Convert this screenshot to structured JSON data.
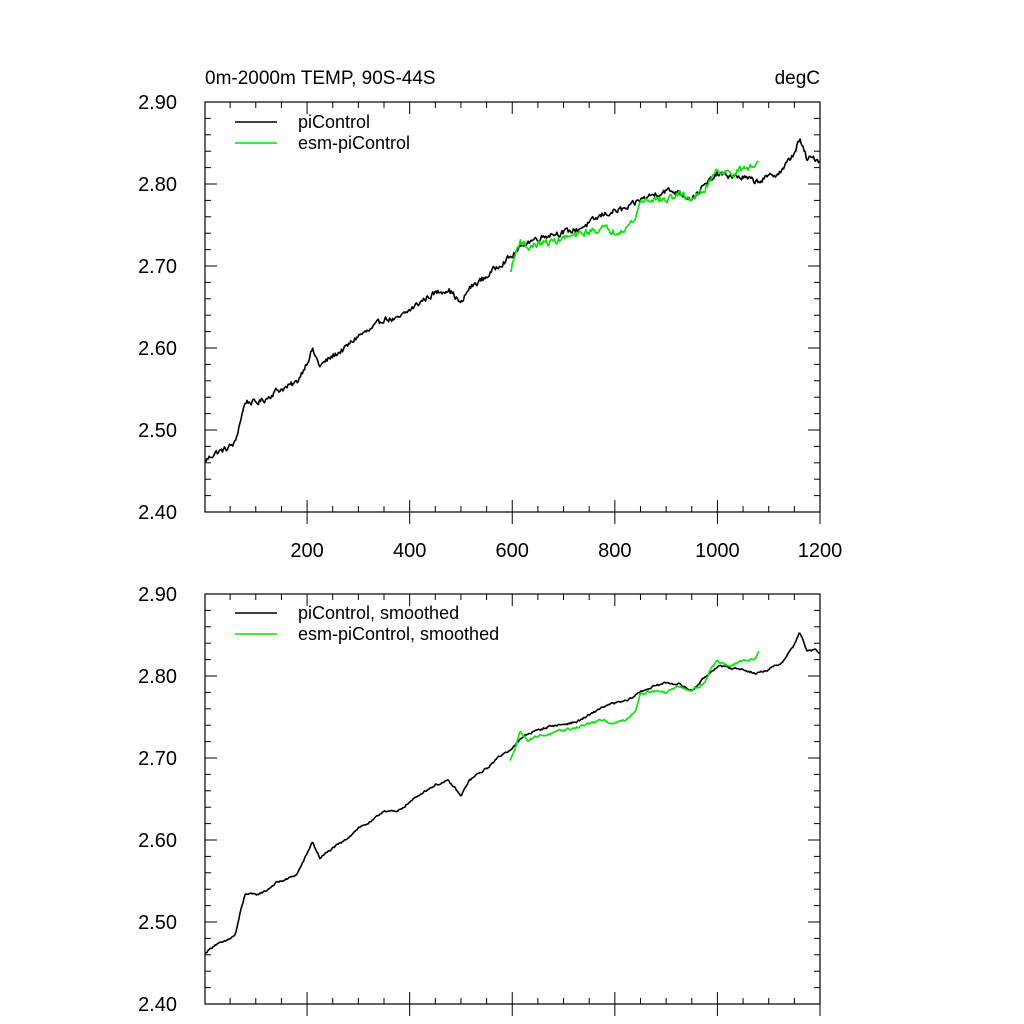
{
  "colors": {
    "picontrol": "#000000",
    "esm_picontrol": "#00e400"
  },
  "chart_data": [
    {
      "type": "line",
      "title_left": "0m-2000m TEMP, 90S-44S",
      "title_right": "degC",
      "xlabel": "",
      "ylabel": "",
      "xlim": [
        1,
        1200
      ],
      "ylim": [
        2.4,
        2.9
      ],
      "xticks": [
        200,
        400,
        600,
        800,
        1000,
        1200
      ],
      "xtick_labels": [
        "200",
        "400",
        "600",
        "800",
        "1000",
        "1200"
      ],
      "yticks": [
        2.4,
        2.5,
        2.6,
        2.7,
        2.8,
        2.9
      ],
      "ytick_labels": [
        "2.40",
        "2.50",
        "2.60",
        "2.70",
        "2.80",
        "2.90"
      ],
      "legend": [
        "piControl",
        "esm-piControl"
      ],
      "series": [
        {
          "name": "piControl",
          "color_key": "picontrol",
          "noise": 0.006,
          "points": [
            [
              1,
              2.462
            ],
            [
              20,
              2.472
            ],
            [
              40,
              2.476
            ],
            [
              60,
              2.484
            ],
            [
              70,
              2.512
            ],
            [
              80,
              2.535
            ],
            [
              100,
              2.533
            ],
            [
              120,
              2.538
            ],
            [
              140,
              2.548
            ],
            [
              160,
              2.552
            ],
            [
              180,
              2.558
            ],
            [
              200,
              2.583
            ],
            [
              210,
              2.598
            ],
            [
              225,
              2.578
            ],
            [
              250,
              2.59
            ],
            [
              275,
              2.6
            ],
            [
              300,
              2.615
            ],
            [
              325,
              2.622
            ],
            [
              350,
              2.636
            ],
            [
              375,
              2.634
            ],
            [
              400,
              2.646
            ],
            [
              425,
              2.658
            ],
            [
              450,
              2.667
            ],
            [
              475,
              2.672
            ],
            [
              490,
              2.662
            ],
            [
              500,
              2.653
            ],
            [
              515,
              2.672
            ],
            [
              530,
              2.679
            ],
            [
              550,
              2.687
            ],
            [
              575,
              2.702
            ],
            [
              600,
              2.712
            ],
            [
              625,
              2.728
            ],
            [
              650,
              2.734
            ],
            [
              675,
              2.739
            ],
            [
              700,
              2.741
            ],
            [
              725,
              2.744
            ],
            [
              750,
              2.752
            ],
            [
              775,
              2.762
            ],
            [
              800,
              2.767
            ],
            [
              825,
              2.77
            ],
            [
              850,
              2.781
            ],
            [
              875,
              2.787
            ],
            [
              900,
              2.792
            ],
            [
              925,
              2.79
            ],
            [
              950,
              2.782
            ],
            [
              975,
              2.798
            ],
            [
              1000,
              2.812
            ],
            [
              1025,
              2.81
            ],
            [
              1050,
              2.808
            ],
            [
              1075,
              2.803
            ],
            [
              1100,
              2.808
            ],
            [
              1125,
              2.816
            ],
            [
              1150,
              2.838
            ],
            [
              1160,
              2.854
            ],
            [
              1175,
              2.83
            ],
            [
              1190,
              2.832
            ],
            [
              1200,
              2.828
            ]
          ]
        },
        {
          "name": "esm-piControl",
          "color_key": "esm_picontrol",
          "noise": 0.007,
          "points": [
            [
              596,
              2.692
            ],
            [
              605,
              2.712
            ],
            [
              615,
              2.732
            ],
            [
              630,
              2.722
            ],
            [
              650,
              2.727
            ],
            [
              675,
              2.729
            ],
            [
              700,
              2.734
            ],
            [
              725,
              2.737
            ],
            [
              750,
              2.742
            ],
            [
              775,
              2.746
            ],
            [
              800,
              2.742
            ],
            [
              825,
              2.748
            ],
            [
              840,
              2.758
            ],
            [
              850,
              2.779
            ],
            [
              875,
              2.782
            ],
            [
              900,
              2.78
            ],
            [
              925,
              2.788
            ],
            [
              950,
              2.782
            ],
            [
              975,
              2.792
            ],
            [
              990,
              2.812
            ],
            [
              1000,
              2.818
            ],
            [
              1025,
              2.812
            ],
            [
              1050,
              2.818
            ],
            [
              1075,
              2.822
            ],
            [
              1080,
              2.83
            ]
          ]
        }
      ]
    },
    {
      "type": "line",
      "title_left": "",
      "title_right": "",
      "xlabel": "",
      "ylabel": "",
      "xlim": [
        1,
        1200
      ],
      "ylim": [
        2.4,
        2.9
      ],
      "xticks": [
        200,
        400,
        600,
        800,
        1000,
        1200
      ],
      "xtick_labels": [],
      "yticks": [
        2.4,
        2.5,
        2.6,
        2.7,
        2.8,
        2.9
      ],
      "ytick_labels": [
        "2.40",
        "2.50",
        "2.60",
        "2.70",
        "2.80",
        "2.90"
      ],
      "legend": [
        "piControl, smoothed",
        "esm-piControl, smoothed"
      ],
      "series": [
        {
          "name": "piControl, smoothed",
          "color_key": "picontrol",
          "noise": 0.002,
          "points": [
            [
              1,
              2.462
            ],
            [
              20,
              2.472
            ],
            [
              40,
              2.476
            ],
            [
              60,
              2.484
            ],
            [
              70,
              2.512
            ],
            [
              80,
              2.535
            ],
            [
              100,
              2.533
            ],
            [
              120,
              2.538
            ],
            [
              140,
              2.548
            ],
            [
              160,
              2.552
            ],
            [
              180,
              2.558
            ],
            [
              200,
              2.583
            ],
            [
              210,
              2.598
            ],
            [
              225,
              2.578
            ],
            [
              250,
              2.59
            ],
            [
              275,
              2.6
            ],
            [
              300,
              2.615
            ],
            [
              325,
              2.622
            ],
            [
              350,
              2.636
            ],
            [
              375,
              2.634
            ],
            [
              400,
              2.646
            ],
            [
              425,
              2.658
            ],
            [
              450,
              2.667
            ],
            [
              475,
              2.672
            ],
            [
              490,
              2.662
            ],
            [
              500,
              2.653
            ],
            [
              515,
              2.672
            ],
            [
              530,
              2.679
            ],
            [
              550,
              2.687
            ],
            [
              575,
              2.702
            ],
            [
              600,
              2.712
            ],
            [
              625,
              2.728
            ],
            [
              650,
              2.734
            ],
            [
              675,
              2.739
            ],
            [
              700,
              2.741
            ],
            [
              725,
              2.744
            ],
            [
              750,
              2.752
            ],
            [
              775,
              2.762
            ],
            [
              800,
              2.767
            ],
            [
              825,
              2.77
            ],
            [
              850,
              2.781
            ],
            [
              875,
              2.787
            ],
            [
              900,
              2.792
            ],
            [
              925,
              2.79
            ],
            [
              950,
              2.782
            ],
            [
              975,
              2.798
            ],
            [
              1000,
              2.812
            ],
            [
              1025,
              2.81
            ],
            [
              1050,
              2.808
            ],
            [
              1075,
              2.803
            ],
            [
              1100,
              2.808
            ],
            [
              1125,
              2.816
            ],
            [
              1150,
              2.838
            ],
            [
              1160,
              2.854
            ],
            [
              1175,
              2.83
            ],
            [
              1190,
              2.832
            ],
            [
              1200,
              2.828
            ]
          ]
        },
        {
          "name": "esm-piControl, smoothed",
          "color_key": "esm_picontrol",
          "noise": 0.0025,
          "points": [
            [
              596,
              2.696
            ],
            [
              605,
              2.712
            ],
            [
              615,
              2.732
            ],
            [
              630,
              2.722
            ],
            [
              650,
              2.727
            ],
            [
              675,
              2.729
            ],
            [
              700,
              2.734
            ],
            [
              725,
              2.737
            ],
            [
              750,
              2.742
            ],
            [
              775,
              2.746
            ],
            [
              800,
              2.742
            ],
            [
              825,
              2.748
            ],
            [
              840,
              2.758
            ],
            [
              850,
              2.779
            ],
            [
              875,
              2.782
            ],
            [
              900,
              2.78
            ],
            [
              925,
              2.788
            ],
            [
              950,
              2.782
            ],
            [
              975,
              2.792
            ],
            [
              990,
              2.812
            ],
            [
              1000,
              2.818
            ],
            [
              1025,
              2.812
            ],
            [
              1050,
              2.818
            ],
            [
              1075,
              2.822
            ],
            [
              1080,
              2.83
            ]
          ]
        }
      ]
    }
  ]
}
